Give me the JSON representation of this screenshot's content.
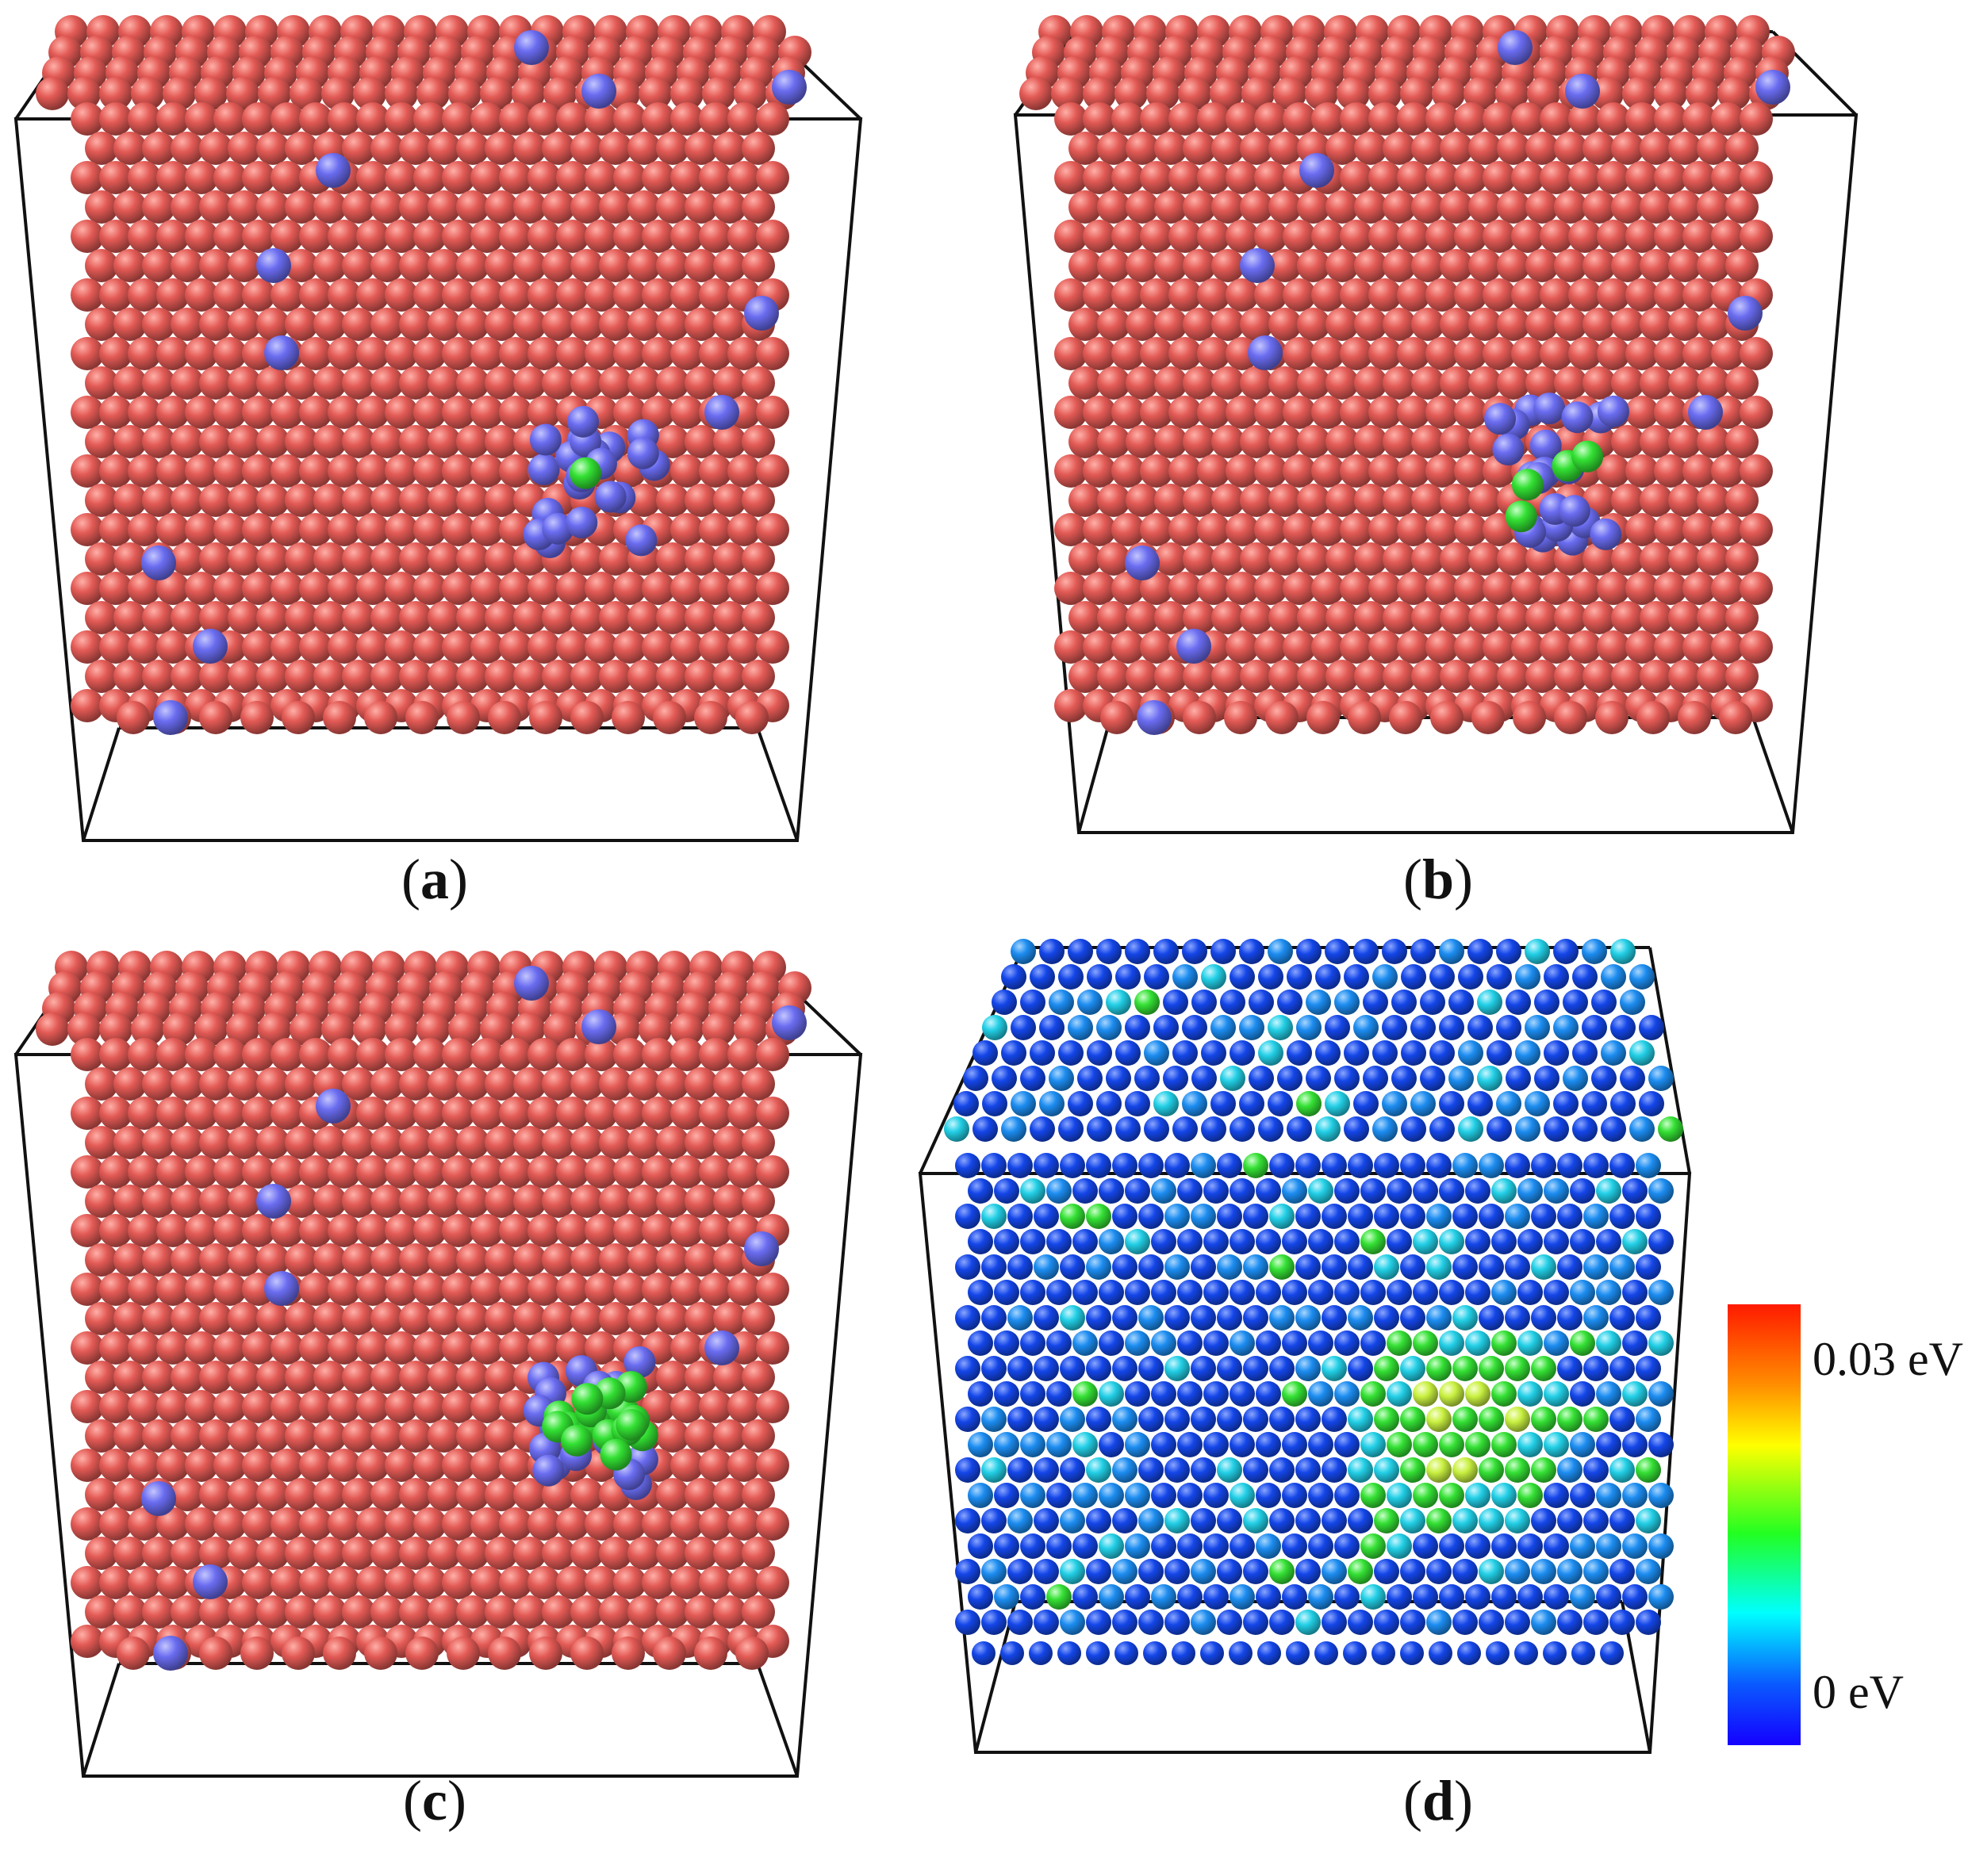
{
  "panels": [
    {
      "id": "a",
      "caption_open": "(",
      "letter": "a",
      "caption_close": ")",
      "scheme": "red-atoms",
      "cluster": "mixed-blue-green-1"
    },
    {
      "id": "b",
      "caption_open": "(",
      "letter": "b",
      "caption_close": ")",
      "scheme": "red-atoms",
      "cluster": "mixed-blue-green-3"
    },
    {
      "id": "c",
      "caption_open": "(",
      "letter": "c",
      "caption_close": ")",
      "scheme": "red-atoms",
      "cluster": "mostly-green"
    },
    {
      "id": "d",
      "caption_open": "(",
      "letter": "d",
      "caption_close": ")",
      "scheme": "energy-colormap",
      "cluster": "green-yellow"
    }
  ],
  "colorbar": {
    "max_label": "0.03 eV",
    "min_label": "0 eV",
    "colors": [
      "#ff1a00",
      "#ff8c00",
      "#ffff00",
      "#22ff22",
      "#00ffff",
      "#0a5bff",
      "#1400ff"
    ]
  },
  "colors": {
    "red_atom": "#e35a55",
    "blue_atom": "#6a6cf0",
    "green_atom": "#33e033",
    "energy_low": "#1446e8",
    "box_edge": "#111111"
  }
}
